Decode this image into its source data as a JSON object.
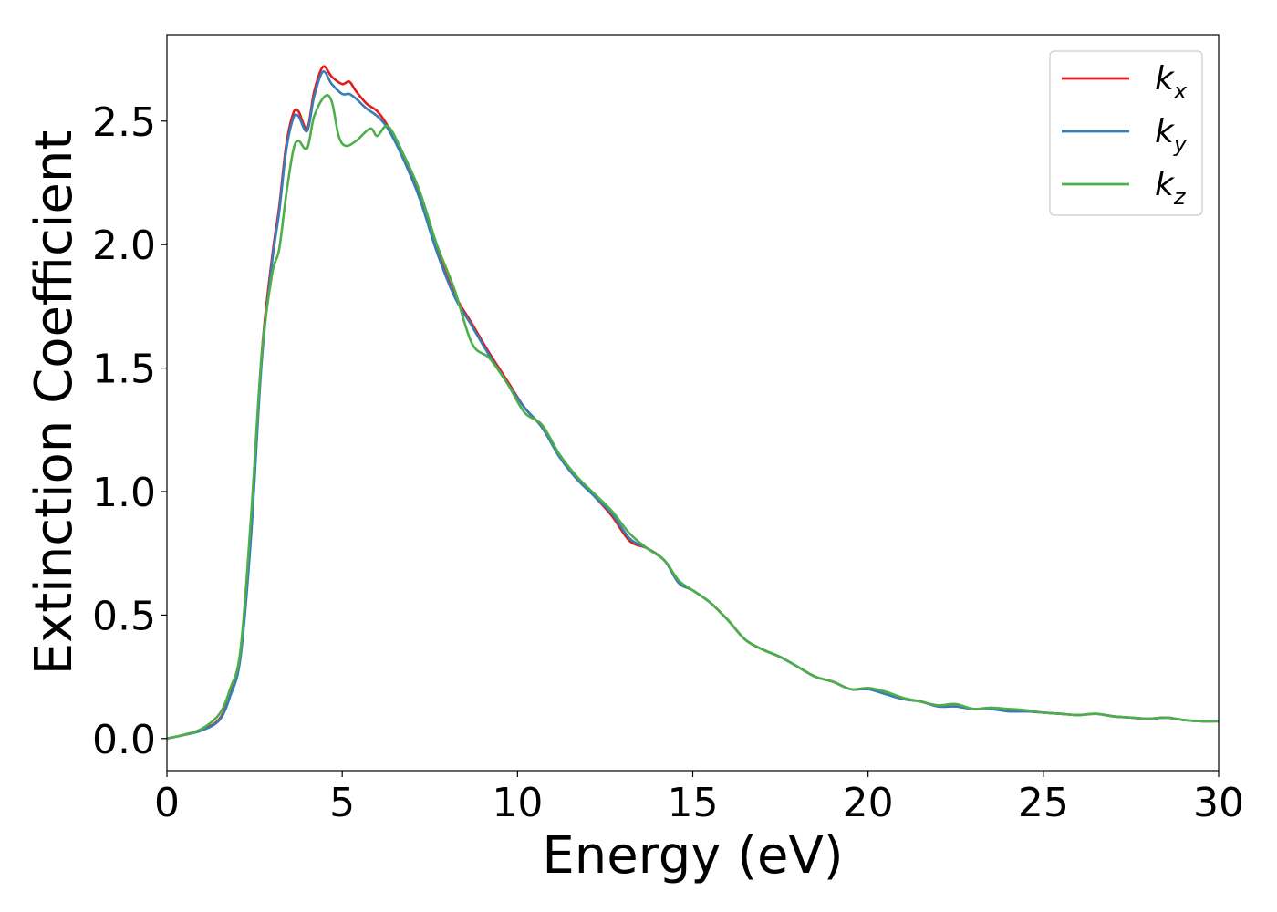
{
  "chart_data": {
    "type": "line",
    "xlabel": "Energy (eV)",
    "ylabel": "Extinction Coefficient",
    "xlim": [
      0,
      30
    ],
    "ylim": [
      -0.13,
      2.85
    ],
    "xticks": [
      "0",
      "5",
      "10",
      "15",
      "20",
      "25",
      "30"
    ],
    "yticks": [
      "0.0",
      "0.5",
      "1.0",
      "1.5",
      "2.0",
      "2.5"
    ],
    "grid": false,
    "legend_position": "top-right",
    "series": [
      {
        "name": "k",
        "subscript": "x",
        "color": "#e41a1c",
        "x": [
          0,
          0.5,
          1.0,
          1.5,
          1.8,
          2.1,
          2.4,
          2.7,
          3.0,
          3.2,
          3.4,
          3.6,
          3.75,
          4.0,
          4.2,
          4.45,
          4.7,
          5.0,
          5.2,
          5.4,
          5.7,
          6.0,
          6.3,
          6.7,
          7.2,
          7.7,
          8.2,
          8.7,
          9.2,
          9.7,
          10.2,
          10.7,
          11.2,
          11.7,
          12.2,
          12.7,
          13.2,
          13.7,
          14.2,
          14.6,
          15.0,
          15.5,
          16.0,
          16.5,
          17.0,
          17.5,
          18.0,
          18.5,
          19.0,
          19.5,
          20.0,
          20.5,
          21.0,
          21.5,
          22.0,
          22.5,
          23.0,
          23.5,
          24.0,
          24.5,
          25.0,
          25.5,
          26.0,
          26.5,
          27.0,
          27.5,
          28.0,
          28.5,
          29.0,
          29.5,
          30.0
        ],
        "y": [
          0.0,
          0.015,
          0.035,
          0.08,
          0.18,
          0.35,
          0.85,
          1.55,
          1.95,
          2.15,
          2.4,
          2.53,
          2.54,
          2.47,
          2.62,
          2.72,
          2.68,
          2.65,
          2.66,
          2.62,
          2.57,
          2.54,
          2.48,
          2.37,
          2.2,
          1.98,
          1.8,
          1.68,
          1.56,
          1.45,
          1.34,
          1.26,
          1.14,
          1.05,
          0.98,
          0.9,
          0.8,
          0.77,
          0.72,
          0.63,
          0.6,
          0.55,
          0.48,
          0.4,
          0.36,
          0.33,
          0.29,
          0.25,
          0.23,
          0.2,
          0.2,
          0.18,
          0.16,
          0.15,
          0.13,
          0.13,
          0.12,
          0.12,
          0.11,
          0.11,
          0.105,
          0.1,
          0.095,
          0.1,
          0.09,
          0.085,
          0.08,
          0.085,
          0.075,
          0.07,
          0.07
        ]
      },
      {
        "name": "k",
        "subscript": "y",
        "color": "#377eb8",
        "x": [
          0,
          0.5,
          1.0,
          1.5,
          1.8,
          2.1,
          2.4,
          2.7,
          3.0,
          3.2,
          3.4,
          3.6,
          3.75,
          4.0,
          4.2,
          4.45,
          4.7,
          5.0,
          5.2,
          5.4,
          5.7,
          6.0,
          6.3,
          6.7,
          7.2,
          7.7,
          8.2,
          8.7,
          9.2,
          9.7,
          10.2,
          10.7,
          11.2,
          11.7,
          12.2,
          12.7,
          13.2,
          13.7,
          14.2,
          14.6,
          15.0,
          15.5,
          16.0,
          16.5,
          17.0,
          17.5,
          18.0,
          18.5,
          19.0,
          19.5,
          20.0,
          20.5,
          21.0,
          21.5,
          22.0,
          22.5,
          23.0,
          23.5,
          24.0,
          24.5,
          25.0,
          25.5,
          26.0,
          26.5,
          27.0,
          27.5,
          28.0,
          28.5,
          29.0,
          29.5,
          30.0
        ],
        "y": [
          0.0,
          0.015,
          0.033,
          0.075,
          0.17,
          0.33,
          0.82,
          1.52,
          1.93,
          2.13,
          2.38,
          2.51,
          2.52,
          2.46,
          2.6,
          2.7,
          2.65,
          2.61,
          2.61,
          2.59,
          2.55,
          2.52,
          2.47,
          2.36,
          2.19,
          1.97,
          1.79,
          1.67,
          1.55,
          1.44,
          1.34,
          1.26,
          1.14,
          1.05,
          0.98,
          0.91,
          0.81,
          0.77,
          0.72,
          0.63,
          0.6,
          0.55,
          0.48,
          0.4,
          0.36,
          0.33,
          0.29,
          0.25,
          0.23,
          0.2,
          0.2,
          0.18,
          0.16,
          0.15,
          0.13,
          0.13,
          0.12,
          0.12,
          0.11,
          0.11,
          0.105,
          0.1,
          0.095,
          0.1,
          0.09,
          0.085,
          0.08,
          0.085,
          0.075,
          0.07,
          0.07
        ]
      },
      {
        "name": "k",
        "subscript": "z",
        "color": "#4daf4a",
        "x": [
          0,
          0.5,
          1.0,
          1.5,
          1.8,
          2.1,
          2.4,
          2.7,
          3.0,
          3.2,
          3.4,
          3.6,
          3.75,
          4.0,
          4.2,
          4.5,
          4.7,
          4.9,
          5.1,
          5.4,
          5.8,
          6.0,
          6.3,
          6.7,
          7.2,
          7.7,
          8.2,
          8.7,
          9.2,
          9.7,
          10.2,
          10.7,
          11.2,
          11.7,
          12.2,
          12.7,
          13.2,
          13.7,
          14.2,
          14.6,
          15.0,
          15.5,
          16.0,
          16.5,
          17.0,
          17.5,
          18.0,
          18.5,
          19.0,
          19.5,
          20.0,
          20.5,
          21.0,
          21.5,
          22.0,
          22.5,
          23.0,
          23.5,
          24.0,
          24.5,
          25.0,
          25.5,
          26.0,
          26.5,
          27.0,
          27.5,
          28.0,
          28.5,
          29.0,
          29.5,
          30.0
        ],
        "y": [
          0.0,
          0.016,
          0.04,
          0.1,
          0.2,
          0.36,
          0.9,
          1.55,
          1.88,
          1.98,
          2.2,
          2.38,
          2.42,
          2.39,
          2.52,
          2.6,
          2.58,
          2.44,
          2.4,
          2.42,
          2.47,
          2.44,
          2.48,
          2.38,
          2.22,
          2.0,
          1.82,
          1.6,
          1.54,
          1.44,
          1.32,
          1.27,
          1.15,
          1.06,
          0.99,
          0.92,
          0.83,
          0.77,
          0.72,
          0.64,
          0.6,
          0.55,
          0.48,
          0.4,
          0.36,
          0.33,
          0.29,
          0.25,
          0.23,
          0.2,
          0.205,
          0.19,
          0.165,
          0.15,
          0.135,
          0.14,
          0.12,
          0.125,
          0.12,
          0.115,
          0.105,
          0.1,
          0.095,
          0.1,
          0.09,
          0.085,
          0.08,
          0.085,
          0.075,
          0.07,
          0.07
        ]
      }
    ]
  }
}
